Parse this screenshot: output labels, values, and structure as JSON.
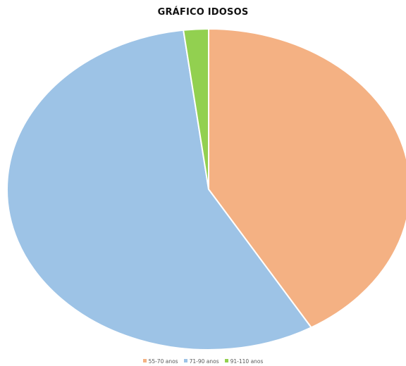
{
  "chart_data": {
    "type": "pie",
    "title": "GRÁFICO IDOSOS",
    "categories": [
      "55-70 anos",
      "71-90 anos",
      "91-110 anos"
    ],
    "values": [
      41.5,
      56.5,
      2.0
    ],
    "colors": [
      "#F4B183",
      "#9DC3E6",
      "#92D050"
    ],
    "legend": "bottom"
  }
}
